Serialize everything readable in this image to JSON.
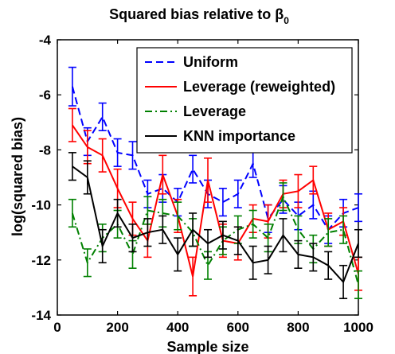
{
  "chart_data": {
    "type": "line",
    "title_main": "Squared bias relative to β",
    "title_subscript": "0",
    "xlabel": "Sample size",
    "ylabel": "log(squared bias)",
    "xlim": [
      0,
      1000
    ],
    "ylim": [
      -14,
      -4
    ],
    "xticks": [
      0,
      200,
      400,
      600,
      800,
      1000
    ],
    "yticks": [
      -4,
      -6,
      -8,
      -10,
      -12,
      -14
    ],
    "legend_placement": "top-right",
    "grid": false,
    "x": [
      50,
      100,
      150,
      200,
      250,
      300,
      350,
      400,
      450,
      500,
      550,
      600,
      650,
      700,
      750,
      800,
      850,
      900,
      950,
      1000
    ],
    "series": [
      {
        "name": "Uniform",
        "color": "#0000ff",
        "style": "dashed",
        "values": [
          -5.7,
          -7.7,
          -6.8,
          -8.1,
          -8.2,
          -9.6,
          -9.4,
          -9.9,
          -8.7,
          -9.6,
          -9.9,
          -9.6,
          -8.5,
          -10.5,
          -9.8,
          -10.4,
          -10.0,
          -10.9,
          -10.3,
          -10.1
        ],
        "errors": [
          0.7,
          0.5,
          0.5,
          0.5,
          0.5,
          0.5,
          0.5,
          0.5,
          0.5,
          0.5,
          0.5,
          0.5,
          0.5,
          0.5,
          0.5,
          0.5,
          0.5,
          0.5,
          0.5,
          0.5
        ]
      },
      {
        "name": "Leverage (reweighted)",
        "color": "#ff0000",
        "style": "solid",
        "values": [
          -7.1,
          -7.9,
          -8.2,
          -9.4,
          -10.5,
          -11.3,
          -8.9,
          -10.4,
          -12.6,
          -9.1,
          -11.3,
          -11.4,
          -10.5,
          -10.6,
          -9.6,
          -9.5,
          -9.1,
          -10.9,
          -10.6,
          -12.5
        ],
        "errors": [
          0.6,
          0.6,
          0.6,
          0.7,
          0.6,
          0.6,
          0.7,
          0.6,
          0.7,
          0.8,
          0.6,
          0.6,
          0.5,
          0.6,
          0.5,
          0.6,
          0.5,
          0.6,
          0.5,
          0.6
        ]
      },
      {
        "name": "Leverage",
        "color": "#008000",
        "style": "dashdot",
        "values": [
          -10.3,
          -12.1,
          -11.2,
          -10.7,
          -11.8,
          -10.2,
          -10.3,
          -10.4,
          -11.0,
          -12.2,
          -11.3,
          -10.9,
          -10.7,
          -11.2,
          -9.7,
          -10.9,
          -11.6,
          -11.0,
          -10.9,
          -12.9
        ],
        "errors": [
          0.5,
          0.5,
          0.5,
          0.5,
          0.5,
          0.5,
          0.5,
          0.5,
          0.5,
          0.5,
          0.5,
          0.5,
          0.5,
          0.5,
          0.5,
          0.5,
          0.5,
          0.5,
          0.5,
          0.5
        ]
      },
      {
        "name": "KNN importance",
        "color": "#000000",
        "style": "solid",
        "values": [
          -8.6,
          -9.0,
          -11.5,
          -10.3,
          -11.2,
          -11.0,
          -10.9,
          -11.8,
          -10.9,
          -11.4,
          -11.1,
          -11.3,
          -12.1,
          -12.0,
          -11.1,
          -11.8,
          -11.9,
          -12.2,
          -12.8,
          -11.4
        ],
        "errors": [
          0.5,
          0.6,
          0.6,
          0.5,
          0.5,
          0.5,
          0.5,
          0.6,
          0.6,
          0.5,
          0.5,
          0.5,
          0.6,
          0.5,
          0.6,
          0.5,
          0.5,
          0.5,
          0.6,
          0.5
        ]
      }
    ]
  }
}
